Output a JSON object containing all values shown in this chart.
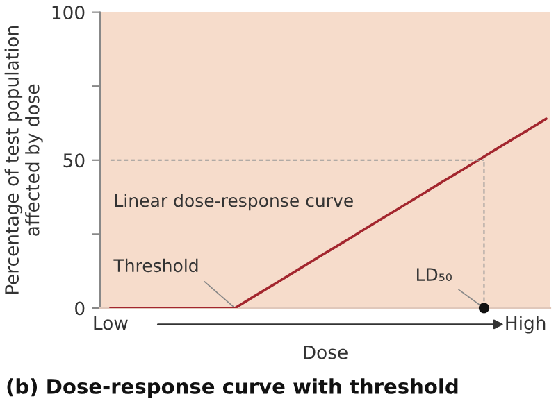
{
  "chart_data": {
    "type": "line",
    "title": "(b) Dose-response curve with threshold",
    "xlabel": "Dose",
    "ylabel": "Percentage of test population\naffected by dose",
    "categories": [
      "Low",
      null,
      null,
      null,
      null,
      null,
      null,
      null,
      null,
      null,
      null,
      null,
      null,
      null,
      null,
      null,
      null,
      null,
      null,
      null,
      "High",
      null
    ],
    "series": [
      {
        "values": [
          0,
          0,
          0,
          0,
          0,
          0,
          0,
          4.3,
          8.5,
          12.8,
          17.1,
          21.3,
          25.6,
          29.9,
          34.1,
          38.4,
          42.7,
          46.9,
          51.2,
          55.5,
          59.7,
          64
        ],
        "color": "#a3262e",
        "line_style": "solid"
      },
      {
        "values": [
          50,
          50,
          50,
          50,
          50,
          50,
          50,
          50,
          50,
          50,
          50,
          50,
          50,
          50,
          50,
          50,
          50,
          50,
          50,
          null,
          null,
          null
        ],
        "color": "#999999",
        "line_style": "dashed"
      },
      {
        "type": "scatter",
        "values": [
          null,
          null,
          null,
          null,
          null,
          null,
          null,
          null,
          null,
          null,
          null,
          null,
          null,
          null,
          null,
          null,
          null,
          null,
          0,
          null,
          null,
          null
        ],
        "errors": [
          null,
          null,
          null,
          null,
          null,
          null,
          null,
          null,
          null,
          null,
          null,
          null,
          null,
          null,
          null,
          null,
          null,
          null,
          [
            0,
            50
          ],
          null,
          null,
          null
        ],
        "color": "#111111",
        "marker": "circle"
      }
    ],
    "ylim": [
      0,
      100
    ],
    "yticks": [
      0,
      {
        "value": 25,
        "label": null
      },
      50,
      {
        "value": 75,
        "label": null
      },
      100
    ],
    "annotations": [
      "Linear dose-response curve",
      {
        "text": "Threshold",
        "y": 0
      },
      "LD₅₀"
    ],
    "grid": false,
    "legend": false
  }
}
